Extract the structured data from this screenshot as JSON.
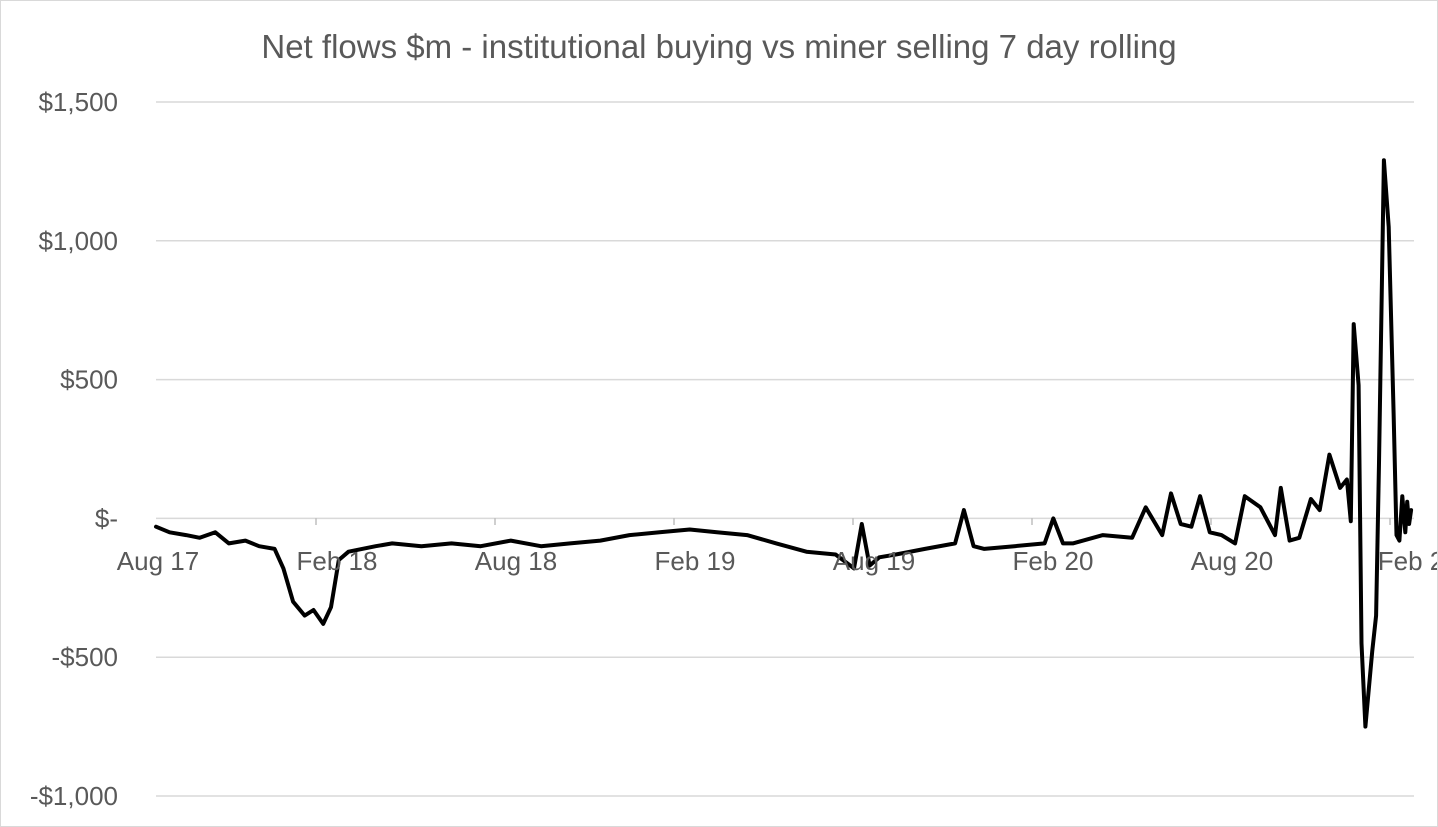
{
  "chart_data": {
    "type": "line",
    "title": "Net flows $m - institutional buying vs miner selling 7 day rolling",
    "xlabel": "",
    "ylabel": "",
    "x_tick_labels": [
      "Aug 17",
      "Feb 18",
      "Aug 18",
      "Feb 19",
      "Aug 19",
      "Feb 20",
      "Aug 20",
      "Feb 2"
    ],
    "y_tick_labels": [
      "$1,500",
      "$1,000",
      "$500",
      "$-",
      "-$500",
      "-$1,000"
    ],
    "y_ticks": [
      1500,
      1000,
      500,
      0,
      -500,
      -1000
    ],
    "ylim": [
      -1000,
      1500
    ],
    "xlim": [
      "2017-08-01",
      "2021-02-15"
    ],
    "grid": "horizontal",
    "legend": "none",
    "line_color": "#000000",
    "series": [
      {
        "x": [
          "2017-08-01",
          "2017-08-15",
          "2017-09-01",
          "2017-09-15",
          "2017-10-01",
          "2017-10-15",
          "2017-11-01",
          "2017-11-15",
          "2017-12-01",
          "2017-12-10",
          "2017-12-20",
          "2018-01-01",
          "2018-01-10",
          "2018-01-20",
          "2018-01-28",
          "2018-02-05",
          "2018-02-15",
          "2018-03-01",
          "2018-03-15",
          "2018-04-01",
          "2018-05-01",
          "2018-06-01",
          "2018-07-01",
          "2018-08-01",
          "2018-09-01",
          "2018-10-01",
          "2018-11-01",
          "2018-12-01",
          "2019-01-01",
          "2019-02-01",
          "2019-03-01",
          "2019-04-01",
          "2019-05-01",
          "2019-06-01",
          "2019-07-01",
          "2019-07-20",
          "2019-07-28",
          "2019-08-05",
          "2019-08-15",
          "2019-09-01",
          "2019-10-01",
          "2019-11-01",
          "2019-11-10",
          "2019-11-20",
          "2019-12-01",
          "2020-01-01",
          "2020-02-01",
          "2020-02-10",
          "2020-02-20",
          "2020-03-01",
          "2020-04-01",
          "2020-05-01",
          "2020-05-15",
          "2020-06-01",
          "2020-06-10",
          "2020-06-20",
          "2020-07-01",
          "2020-07-10",
          "2020-07-20",
          "2020-08-01",
          "2020-08-15",
          "2020-08-25",
          "2020-09-10",
          "2020-09-25",
          "2020-10-01",
          "2020-10-10",
          "2020-10-20",
          "2020-11-01",
          "2020-11-10",
          "2020-11-20",
          "2020-12-01",
          "2020-12-08",
          "2020-12-12",
          "2020-12-15",
          "2020-12-20",
          "2020-12-23",
          "2020-12-27",
          "2021-01-03",
          "2021-01-07",
          "2021-01-10",
          "2021-01-15",
          "2021-01-20",
          "2021-01-25",
          "2021-01-28",
          "2021-01-31",
          "2021-02-03",
          "2021-02-06",
          "2021-02-08",
          "2021-02-10",
          "2021-02-12"
        ],
        "values": [
          -30,
          -50,
          -60,
          -70,
          -50,
          -90,
          -80,
          -100,
          -110,
          -180,
          -300,
          -350,
          -330,
          -380,
          -320,
          -150,
          -120,
          -110,
          -100,
          -90,
          -100,
          -90,
          -100,
          -80,
          -100,
          -90,
          -80,
          -60,
          -50,
          -40,
          -50,
          -60,
          -90,
          -120,
          -130,
          -180,
          -20,
          -170,
          -140,
          -130,
          -110,
          -90,
          30,
          -100,
          -110,
          -100,
          -90,
          0,
          -90,
          -90,
          -60,
          -70,
          40,
          -60,
          90,
          -20,
          -30,
          80,
          -50,
          -60,
          -90,
          80,
          40,
          -60,
          110,
          -80,
          -70,
          70,
          30,
          230,
          110,
          140,
          -10,
          700,
          480,
          -450,
          -750,
          -480,
          -350,
          200,
          1290,
          1050,
          380,
          -60,
          -80,
          80,
          -50,
          60,
          -20,
          30
        ]
      }
    ]
  }
}
